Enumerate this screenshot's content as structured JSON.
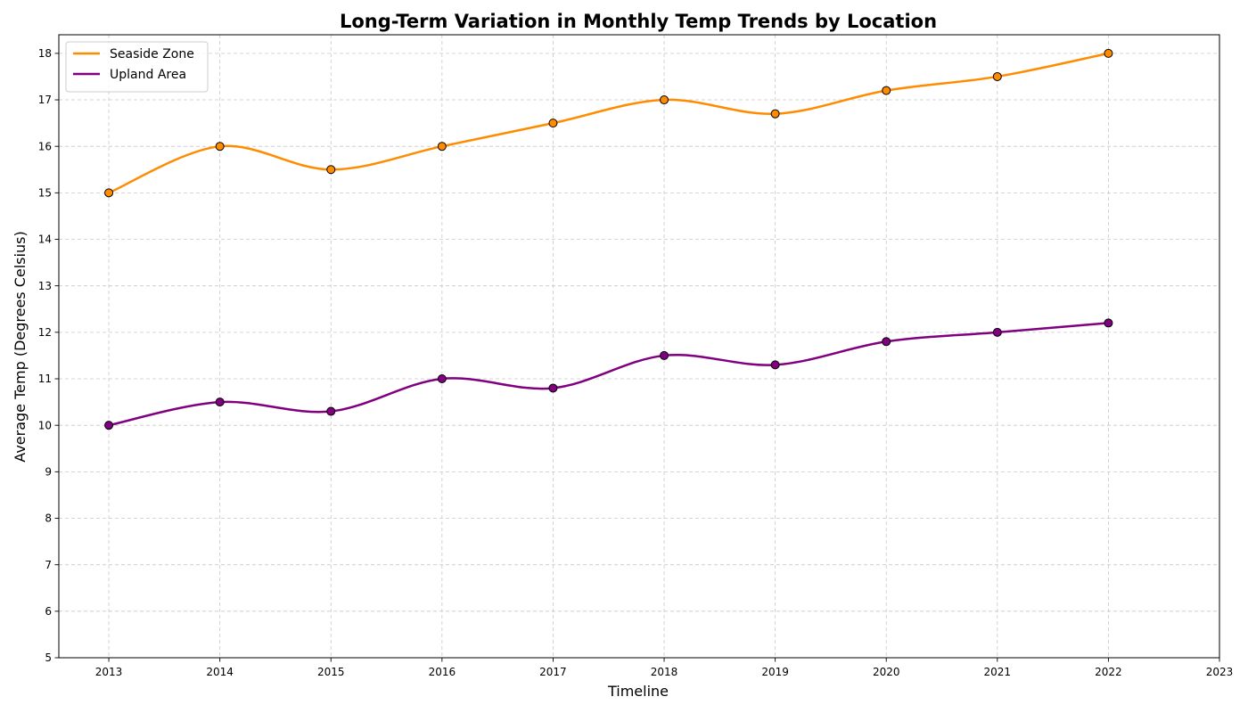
{
  "chart_data": {
    "type": "line",
    "title": "Long-Term Variation in Monthly Temp Trends by Location",
    "xlabel": "Timeline",
    "ylabel": "Average Temp (Degrees Celsius)",
    "xlim": [
      2012.55,
      2023
    ],
    "ylim": [
      5,
      18.4
    ],
    "x_ticks": [
      2013,
      2014,
      2015,
      2016,
      2017,
      2018,
      2019,
      2020,
      2021,
      2022,
      2023
    ],
    "y_ticks": [
      5,
      6,
      7,
      8,
      9,
      10,
      11,
      12,
      13,
      14,
      15,
      16,
      17,
      18
    ],
    "grid": true,
    "legend_position": "top-left",
    "x": [
      2013,
      2014,
      2015,
      2016,
      2017,
      2018,
      2019,
      2020,
      2021,
      2022
    ],
    "series": [
      {
        "name": "Seaside Zone",
        "color": "#ff8c00",
        "values": [
          15,
          16,
          15.5,
          16,
          16.5,
          17,
          16.7,
          17.2,
          17.5,
          18
        ]
      },
      {
        "name": "Upland Area",
        "color": "#800080",
        "values": [
          10,
          10.5,
          10.3,
          11,
          10.8,
          11.5,
          11.3,
          11.8,
          12,
          12.2
        ]
      }
    ]
  }
}
